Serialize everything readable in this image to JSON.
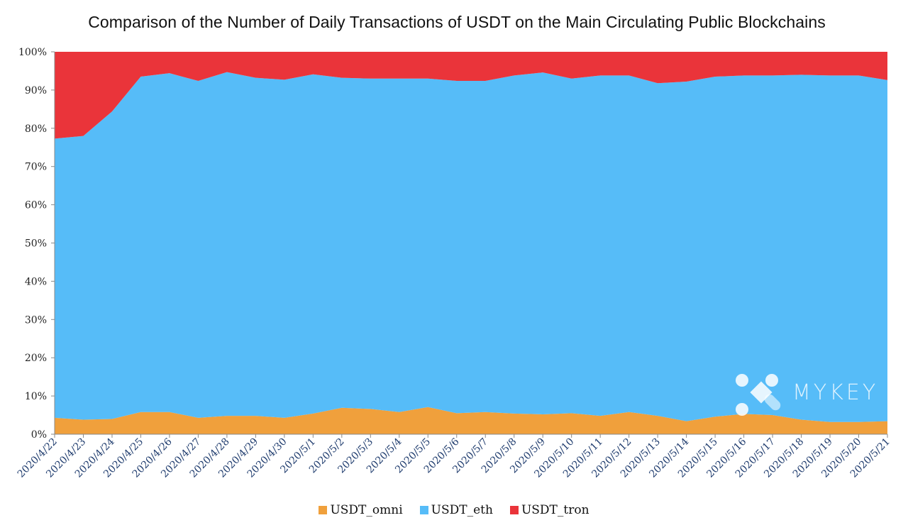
{
  "chart_data": {
    "type": "area",
    "stacked": true,
    "normalized": true,
    "title": "Comparison of the Number of Daily Transactions of USDT on the Main Circulating Public Blockchains",
    "xlabel": "",
    "ylabel": "",
    "ylim": [
      0,
      100
    ],
    "yticks": [
      "0%",
      "10%",
      "20%",
      "30%",
      "40%",
      "50%",
      "60%",
      "70%",
      "80%",
      "90%",
      "100%"
    ],
    "categories": [
      "2020/4/22",
      "2020/4/23",
      "2020/4/24",
      "2020/4/25",
      "2020/4/26",
      "2020/4/27",
      "2020/4/28",
      "2020/4/29",
      "2020/4/30",
      "2020/5/1",
      "2020/5/2",
      "2020/5/3",
      "2020/5/4",
      "2020/5/5",
      "2020/5/6",
      "2020/5/7",
      "2020/5/8",
      "2020/5/9",
      "2020/5/10",
      "2020/5/11",
      "2020/5/12",
      "2020/5/13",
      "2020/5/14",
      "2020/5/15",
      "2020/5/16",
      "2020/5/17",
      "2020/5/18",
      "2020/5/19",
      "2020/5/20",
      "2020/5/21"
    ],
    "series": [
      {
        "name": "USDT_omni",
        "color": "#f0a03c",
        "values": [
          4.3,
          3.8,
          4.0,
          5.8,
          5.8,
          4.3,
          4.8,
          4.8,
          4.3,
          5.4,
          6.9,
          6.6,
          5.8,
          7.1,
          5.5,
          5.8,
          5.4,
          5.2,
          5.5,
          4.8,
          5.8,
          4.8,
          3.4,
          4.6,
          5.3,
          5.0,
          3.8,
          3.2,
          3.2,
          3.4
        ]
      },
      {
        "name": "USDT_eth",
        "color": "#56bcf8",
        "values": [
          73.0,
          74.2,
          80.4,
          87.7,
          88.6,
          88.1,
          89.9,
          88.4,
          88.4,
          88.7,
          86.3,
          86.4,
          87.2,
          85.9,
          86.9,
          86.6,
          88.4,
          89.4,
          87.5,
          89.0,
          88.0,
          87.0,
          88.8,
          88.9,
          88.5,
          88.8,
          90.2,
          90.6,
          90.6,
          89.2
        ]
      },
      {
        "name": "USDT_tron",
        "color": "#ea343a",
        "values": [
          22.7,
          22.0,
          15.6,
          6.5,
          5.6,
          7.6,
          5.3,
          6.8,
          7.3,
          5.9,
          6.8,
          7.0,
          7.0,
          7.0,
          7.6,
          7.6,
          6.2,
          5.4,
          7.0,
          6.2,
          6.2,
          8.2,
          7.8,
          6.5,
          6.2,
          6.2,
          6.0,
          6.2,
          6.2,
          7.4
        ]
      }
    ],
    "legend_position": "bottom",
    "grid": false
  },
  "watermark": {
    "text": "MYKEY"
  }
}
